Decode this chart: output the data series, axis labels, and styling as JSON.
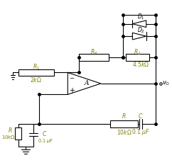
{
  "bg_color": "#ffffff",
  "line_color": "#000000",
  "text_color": "#808000",
  "figsize": [
    2.42,
    2.33
  ],
  "dpi": 100,
  "lw": 0.8
}
